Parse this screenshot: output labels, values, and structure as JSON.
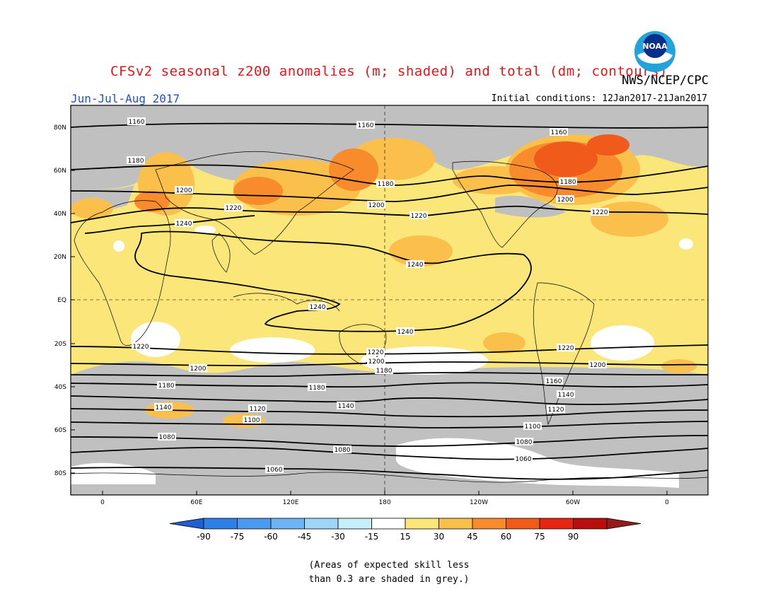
{
  "title": "CFSv2 seasonal z200 anomalies (m; shaded) and total (dm; contours)",
  "org": "NWS/NCEP/CPC",
  "season": "Jun-Jul-Aug 2017",
  "initial_conditions": "Initial conditions: 12Jan2017-21Jan2017",
  "logo_text": "NOAA",
  "lat_labels": [
    "80N",
    "60N",
    "40N",
    "20N",
    "EQ",
    "20S",
    "40S",
    "60S",
    "80S"
  ],
  "lon_labels": [
    "0",
    "60E",
    "120E",
    "180",
    "120W",
    "60W",
    "0"
  ],
  "colorbar": {
    "labels": [
      "-90",
      "-75",
      "-60",
      "-45",
      "-30",
      "-15",
      "15",
      "30",
      "45",
      "60",
      "75",
      "90"
    ],
    "colors": [
      "#1f5fd2",
      "#2f80e6",
      "#4a9af0",
      "#6cb4f5",
      "#9fd6f8",
      "#c6eff9",
      "#ffffff",
      "#fbe67a",
      "#fbc04b",
      "#f88c2c",
      "#f05a1a",
      "#e62514",
      "#b70e0e",
      "#931b1b"
    ]
  },
  "note_line1": "(Areas of expected skill less",
  "note_line2": "than 0.3 are shaded in grey.)",
  "contour_labels": [
    "1160",
    "1160",
    "1160",
    "1180",
    "1180",
    "1180",
    "1200",
    "1200",
    "1200",
    "1220",
    "1220",
    "1220",
    "1240",
    "1240",
    "1240",
    "1240",
    "1220",
    "1220",
    "1220",
    "1200",
    "1200",
    "1200",
    "1180",
    "1180",
    "1180",
    "1160",
    "1140",
    "1140",
    "1140",
    "1120",
    "1120",
    "1100",
    "1100",
    "1080",
    "1080",
    "1080",
    "1060",
    "1060"
  ],
  "colors_meaning": {
    "grey_low_skill": "#c0c0c0"
  }
}
